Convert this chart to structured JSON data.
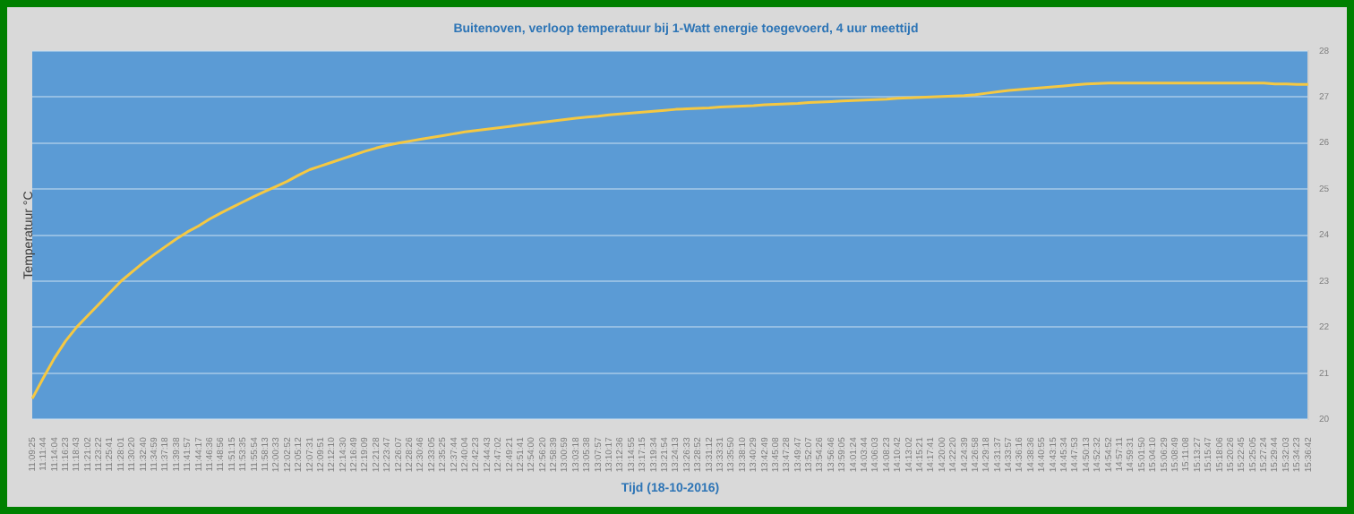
{
  "chart_data": {
    "type": "line",
    "title": "Buitenoven, verloop temperatuur bij 1-Watt energie toegevoerd, 4 uur meettijd",
    "xlabel": "Tijd (18-10-2016)",
    "ylabel": "Temperatuur °C",
    "categories": [
      "11:09:25",
      "11:11:44",
      "11:14:04",
      "11:16:23",
      "11:18:43",
      "11:21:02",
      "11:23:22",
      "11:25:41",
      "11:28:01",
      "11:30:20",
      "11:32:40",
      "11:34:59",
      "11:37:18",
      "11:39:38",
      "11:41:57",
      "11:44:17",
      "11:46:36",
      "11:48:56",
      "11:51:15",
      "11:53:35",
      "11:55:54",
      "11:58:13",
      "12:00:33",
      "12:02:52",
      "12:05:12",
      "12:07:31",
      "12:09:51",
      "12:12:10",
      "12:14:30",
      "12:16:49",
      "12:19:09",
      "12:21:28",
      "12:23:47",
      "12:26:07",
      "12:28:26",
      "12:30:46",
      "12:33:05",
      "12:35:25",
      "12:37:44",
      "12:40:04",
      "12:42:23",
      "12:44:43",
      "12:47:02",
      "12:49:21",
      "12:51:41",
      "12:54:00",
      "12:56:20",
      "12:58:39",
      "13:00:59",
      "13:03:18",
      "13:05:38",
      "13:07:57",
      "13:10:17",
      "13:12:36",
      "13:14:55",
      "13:17:15",
      "13:19:34",
      "13:21:54",
      "13:24:13",
      "13:26:33",
      "13:28:52",
      "13:31:12",
      "13:33:31",
      "13:35:50",
      "13:38:10",
      "13:40:29",
      "13:42:49",
      "13:45:08",
      "13:47:28",
      "13:49:47",
      "13:52:07",
      "13:54:26",
      "13:56:46",
      "13:59:05",
      "14:01:24",
      "14:03:44",
      "14:06:03",
      "14:08:23",
      "14:10:42",
      "14:13:02",
      "14:15:21",
      "14:17:41",
      "14:20:00",
      "14:22:20",
      "14:24:39",
      "14:26:58",
      "14:29:18",
      "14:31:37",
      "14:33:57",
      "14:36:16",
      "14:38:36",
      "14:40:55",
      "14:43:15",
      "14:45:34",
      "14:47:53",
      "14:50:13",
      "14:52:32",
      "14:54:52",
      "14:57:11",
      "14:59:31",
      "15:01:50",
      "15:04:10",
      "15:06:29",
      "15:08:49",
      "15:11:08",
      "15:13:27",
      "15:15:47",
      "15:18:06",
      "15:20:26",
      "15:22:45",
      "15:25:05",
      "15:27:24",
      "15:29:44",
      "15:32:03",
      "15:34:23",
      "15:36:42"
    ],
    "series": [
      {
        "color": "#f5c842",
        "values": [
          20.45,
          20.9,
          21.33,
          21.7,
          22.0,
          22.25,
          22.5,
          22.75,
          23.0,
          23.2,
          23.4,
          23.58,
          23.75,
          23.92,
          24.07,
          24.2,
          24.35,
          24.48,
          24.6,
          24.72,
          24.84,
          24.95,
          25.06,
          25.17,
          25.3,
          25.42,
          25.5,
          25.58,
          25.66,
          25.74,
          25.82,
          25.89,
          25.95,
          26.0,
          26.04,
          26.08,
          26.12,
          26.16,
          26.2,
          26.24,
          26.27,
          26.3,
          26.33,
          26.36,
          26.39,
          26.42,
          26.45,
          26.48,
          26.51,
          26.54,
          26.56,
          26.58,
          26.61,
          26.63,
          26.65,
          26.67,
          26.69,
          26.71,
          26.73,
          26.74,
          26.75,
          26.76,
          26.78,
          26.79,
          26.8,
          26.81,
          26.83,
          26.84,
          26.85,
          26.86,
          26.88,
          26.89,
          26.9,
          26.91,
          26.92,
          26.93,
          26.94,
          26.95,
          26.97,
          26.98,
          26.99,
          27.0,
          27.01,
          27.02,
          27.03,
          27.05,
          27.08,
          27.11,
          27.14,
          27.16,
          27.18,
          27.2,
          27.22,
          27.24,
          27.26,
          27.28,
          27.29,
          27.3,
          27.3,
          27.3,
          27.3,
          27.3,
          27.3,
          27.3,
          27.3,
          27.3,
          27.3,
          27.3,
          27.3,
          27.3,
          27.3,
          27.3,
          27.28,
          27.28,
          27.27,
          27.27
        ]
      }
    ],
    "ylim": [
      20,
      28
    ],
    "yticks": [
      20,
      21,
      22,
      23,
      24,
      25,
      26,
      27,
      28
    ],
    "grid": "y",
    "legend": false,
    "marker": "none",
    "line_style": "solid"
  }
}
